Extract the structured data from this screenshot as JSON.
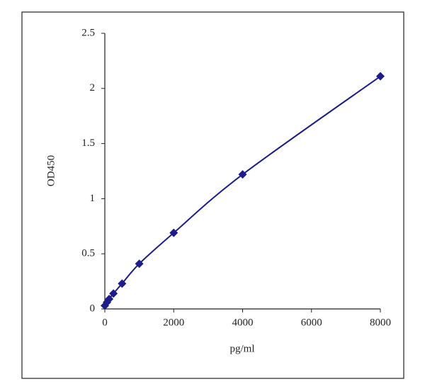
{
  "chart_data": {
    "type": "scatter",
    "x_label": "pg/ml",
    "y_label": "OD450",
    "x": [
      0,
      62.5,
      125,
      250,
      500,
      1000,
      2000,
      4000,
      8000
    ],
    "values": [
      0.03,
      0.06,
      0.09,
      0.14,
      0.23,
      0.41,
      0.69,
      1.22,
      2.11
    ],
    "color": "#1c1c8a",
    "line": true,
    "xlim": [
      0,
      8000
    ],
    "xticks": [
      0,
      2000,
      4000,
      6000,
      8000
    ],
    "ylim": [
      0,
      2.5
    ],
    "yticks": [
      0,
      0.5,
      1,
      1.5,
      2,
      2.5
    ],
    "grid": false
  }
}
